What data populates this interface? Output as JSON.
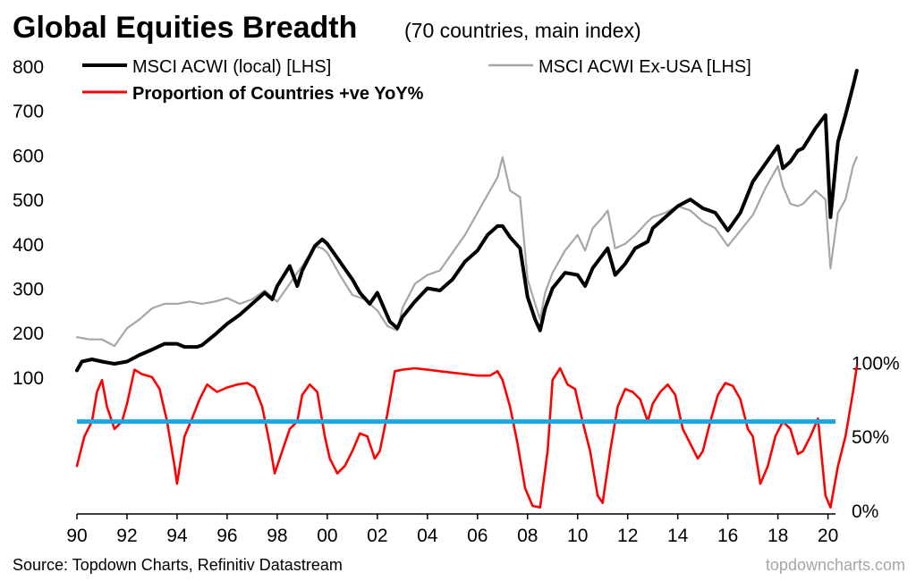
{
  "chart_data": {
    "type": "line",
    "title": "Global Equities Breadth",
    "subtitle": "(70 countries, main index)",
    "source": "Source: Topdown Charts, Refinitiv Datastream",
    "watermark": "topdowncharts.com",
    "x_axis": {
      "tick_labels": [
        "90",
        "92",
        "94",
        "96",
        "98",
        "00",
        "02",
        "04",
        "06",
        "08",
        "10",
        "12",
        "14",
        "16",
        "18",
        "20"
      ],
      "range": [
        1990,
        2020.3
      ]
    },
    "y_left": {
      "tick_labels": [
        "800",
        "700",
        "600",
        "500",
        "400",
        "300",
        "200",
        "100"
      ],
      "ticks": [
        800,
        700,
        600,
        500,
        400,
        300,
        200,
        100
      ],
      "range": [
        -200,
        800
      ]
    },
    "y_right": {
      "tick_labels": [
        "100%",
        "50%",
        "0%"
      ],
      "ticks": [
        100,
        50,
        0
      ],
      "range": [
        0,
        300
      ]
    },
    "legend": {
      "items": [
        {
          "label": "MSCI ACWI (local) [LHS]",
          "color": "#000000"
        },
        {
          "label": "MSCI ACWI Ex-USA [LHS]",
          "color": "#a6a6a6"
        },
        {
          "label": "Proportion of Countries +ve YoY%",
          "color": "#ff0000",
          "bold": true
        }
      ],
      "placement": "top-left"
    },
    "reference_line": {
      "value": 60,
      "axis": "right",
      "color": "#1aa7e0"
    },
    "series": [
      {
        "name": "MSCI ACWI (local) [LHS]",
        "axis": "left",
        "color": "#000000",
        "points": [
          [
            1990.0,
            115
          ],
          [
            1990.2,
            135
          ],
          [
            1990.6,
            140
          ],
          [
            1991.0,
            135
          ],
          [
            1991.5,
            130
          ],
          [
            1992.0,
            135
          ],
          [
            1992.5,
            150
          ],
          [
            1993.0,
            162
          ],
          [
            1993.5,
            175
          ],
          [
            1994.0,
            175
          ],
          [
            1994.3,
            168
          ],
          [
            1994.8,
            168
          ],
          [
            1995.0,
            172
          ],
          [
            1995.5,
            195
          ],
          [
            1996.0,
            220
          ],
          [
            1996.5,
            240
          ],
          [
            1997.0,
            265
          ],
          [
            1997.5,
            290
          ],
          [
            1997.8,
            275
          ],
          [
            1998.0,
            305
          ],
          [
            1998.5,
            350
          ],
          [
            1998.8,
            305
          ],
          [
            1999.0,
            340
          ],
          [
            1999.5,
            395
          ],
          [
            1999.8,
            410
          ],
          [
            2000.0,
            400
          ],
          [
            2000.5,
            360
          ],
          [
            2001.0,
            320
          ],
          [
            2001.3,
            290
          ],
          [
            2001.7,
            265
          ],
          [
            2002.0,
            290
          ],
          [
            2002.5,
            225
          ],
          [
            2002.8,
            210
          ],
          [
            2003.0,
            235
          ],
          [
            2003.5,
            270
          ],
          [
            2004.0,
            300
          ],
          [
            2004.5,
            295
          ],
          [
            2005.0,
            320
          ],
          [
            2005.5,
            360
          ],
          [
            2006.0,
            385
          ],
          [
            2006.4,
            420
          ],
          [
            2006.8,
            440
          ],
          [
            2007.0,
            440
          ],
          [
            2007.3,
            415
          ],
          [
            2007.7,
            390
          ],
          [
            2008.0,
            280
          ],
          [
            2008.3,
            230
          ],
          [
            2008.5,
            205
          ],
          [
            2008.7,
            255
          ],
          [
            2009.0,
            300
          ],
          [
            2009.5,
            335
          ],
          [
            2010.0,
            330
          ],
          [
            2010.3,
            305
          ],
          [
            2010.6,
            345
          ],
          [
            2011.0,
            375
          ],
          [
            2011.2,
            390
          ],
          [
            2011.5,
            330
          ],
          [
            2011.9,
            355
          ],
          [
            2012.3,
            390
          ],
          [
            2012.8,
            405
          ],
          [
            2013.0,
            435
          ],
          [
            2013.5,
            460
          ],
          [
            2014.0,
            485
          ],
          [
            2014.5,
            500
          ],
          [
            2015.0,
            480
          ],
          [
            2015.5,
            470
          ],
          [
            2016.0,
            430
          ],
          [
            2016.5,
            470
          ],
          [
            2017.0,
            540
          ],
          [
            2017.5,
            580
          ],
          [
            2018.0,
            620
          ],
          [
            2018.2,
            570
          ],
          [
            2018.5,
            585
          ],
          [
            2018.8,
            610
          ],
          [
            2019.0,
            615
          ],
          [
            2019.5,
            660
          ],
          [
            2019.9,
            690
          ],
          [
            2020.1,
            460
          ],
          [
            2020.4,
            630
          ],
          [
            2020.7,
            690
          ],
          [
            2021.0,
            755
          ],
          [
            2021.15,
            790
          ]
        ]
      },
      {
        "name": "MSCI ACWI Ex-USA [LHS]",
        "axis": "left",
        "color": "#a6a6a6",
        "points": [
          [
            1990.0,
            190
          ],
          [
            1990.5,
            185
          ],
          [
            1991.0,
            185
          ],
          [
            1991.5,
            170
          ],
          [
            1992.0,
            210
          ],
          [
            1992.5,
            230
          ],
          [
            1993.0,
            255
          ],
          [
            1993.5,
            265
          ],
          [
            1994.0,
            265
          ],
          [
            1994.5,
            270
          ],
          [
            1995.0,
            265
          ],
          [
            1995.5,
            270
          ],
          [
            1996.0,
            278
          ],
          [
            1996.5,
            265
          ],
          [
            1997.0,
            275
          ],
          [
            1997.5,
            295
          ],
          [
            1998.0,
            270
          ],
          [
            1998.5,
            310
          ],
          [
            1998.8,
            335
          ],
          [
            1999.0,
            350
          ],
          [
            1999.5,
            395
          ],
          [
            1999.8,
            390
          ],
          [
            2000.0,
            380
          ],
          [
            2000.5,
            330
          ],
          [
            2001.0,
            285
          ],
          [
            2001.5,
            275
          ],
          [
            2002.0,
            250
          ],
          [
            2002.4,
            215
          ],
          [
            2002.8,
            205
          ],
          [
            2003.0,
            255
          ],
          [
            2003.5,
            310
          ],
          [
            2004.0,
            330
          ],
          [
            2004.5,
            340
          ],
          [
            2005.0,
            380
          ],
          [
            2005.5,
            420
          ],
          [
            2006.0,
            470
          ],
          [
            2006.4,
            510
          ],
          [
            2006.8,
            550
          ],
          [
            2007.0,
            595
          ],
          [
            2007.3,
            520
          ],
          [
            2007.7,
            505
          ],
          [
            2008.0,
            320
          ],
          [
            2008.3,
            265
          ],
          [
            2008.5,
            230
          ],
          [
            2008.7,
            290
          ],
          [
            2009.0,
            335
          ],
          [
            2009.5,
            385
          ],
          [
            2010.0,
            420
          ],
          [
            2010.3,
            385
          ],
          [
            2010.6,
            435
          ],
          [
            2011.0,
            460
          ],
          [
            2011.2,
            475
          ],
          [
            2011.5,
            390
          ],
          [
            2011.9,
            400
          ],
          [
            2012.3,
            420
          ],
          [
            2012.8,
            450
          ],
          [
            2013.0,
            460
          ],
          [
            2013.5,
            470
          ],
          [
            2014.0,
            485
          ],
          [
            2014.5,
            475
          ],
          [
            2015.0,
            450
          ],
          [
            2015.5,
            435
          ],
          [
            2016.0,
            395
          ],
          [
            2016.5,
            430
          ],
          [
            2017.0,
            465
          ],
          [
            2017.5,
            525
          ],
          [
            2018.0,
            575
          ],
          [
            2018.2,
            530
          ],
          [
            2018.5,
            490
          ],
          [
            2018.8,
            485
          ],
          [
            2019.0,
            490
          ],
          [
            2019.5,
            520
          ],
          [
            2019.9,
            500
          ],
          [
            2020.1,
            345
          ],
          [
            2020.4,
            470
          ],
          [
            2020.7,
            500
          ],
          [
            2021.0,
            575
          ],
          [
            2021.15,
            595
          ]
        ]
      },
      {
        "name": "Proportion of Countries +ve YoY%",
        "axis": "right",
        "color": "#ff0000",
        "points": [
          [
            1990.0,
            30
          ],
          [
            1990.3,
            50
          ],
          [
            1990.6,
            60
          ],
          [
            1990.8,
            80
          ],
          [
            1991.0,
            88
          ],
          [
            1991.2,
            70
          ],
          [
            1991.5,
            55
          ],
          [
            1991.8,
            60
          ],
          [
            1992.0,
            72
          ],
          [
            1992.3,
            95
          ],
          [
            1992.6,
            92
          ],
          [
            1993.0,
            90
          ],
          [
            1993.3,
            82
          ],
          [
            1993.6,
            60
          ],
          [
            1993.9,
            30
          ],
          [
            1994.0,
            18
          ],
          [
            1994.3,
            50
          ],
          [
            1994.6,
            62
          ],
          [
            1994.9,
            75
          ],
          [
            1995.2,
            85
          ],
          [
            1995.6,
            80
          ],
          [
            1996.0,
            83
          ],
          [
            1996.4,
            85
          ],
          [
            1996.8,
            86
          ],
          [
            1997.1,
            83
          ],
          [
            1997.4,
            70
          ],
          [
            1997.7,
            45
          ],
          [
            1997.9,
            25
          ],
          [
            1998.2,
            40
          ],
          [
            1998.5,
            55
          ],
          [
            1998.8,
            60
          ],
          [
            1999.0,
            78
          ],
          [
            1999.3,
            85
          ],
          [
            1999.6,
            80
          ],
          [
            1999.9,
            50
          ],
          [
            2000.1,
            35
          ],
          [
            2000.4,
            25
          ],
          [
            2000.7,
            30
          ],
          [
            2001.0,
            40
          ],
          [
            2001.3,
            52
          ],
          [
            2001.6,
            50
          ],
          [
            2001.9,
            35
          ],
          [
            2002.1,
            40
          ],
          [
            2002.4,
            65
          ],
          [
            2002.7,
            94
          ],
          [
            2003.0,
            95
          ],
          [
            2003.5,
            96
          ],
          [
            2004.0,
            95
          ],
          [
            2004.5,
            94
          ],
          [
            2005.0,
            93
          ],
          [
            2005.5,
            92
          ],
          [
            2006.0,
            91
          ],
          [
            2006.5,
            91
          ],
          [
            2006.8,
            94
          ],
          [
            2007.0,
            88
          ],
          [
            2007.3,
            70
          ],
          [
            2007.6,
            45
          ],
          [
            2007.9,
            15
          ],
          [
            2008.2,
            3
          ],
          [
            2008.5,
            2
          ],
          [
            2008.8,
            40
          ],
          [
            2009.0,
            88
          ],
          [
            2009.3,
            96
          ],
          [
            2009.6,
            85
          ],
          [
            2009.9,
            82
          ],
          [
            2010.2,
            60
          ],
          [
            2010.5,
            40
          ],
          [
            2010.8,
            10
          ],
          [
            2011.0,
            5
          ],
          [
            2011.3,
            40
          ],
          [
            2011.6,
            70
          ],
          [
            2011.9,
            82
          ],
          [
            2012.2,
            80
          ],
          [
            2012.5,
            75
          ],
          [
            2012.8,
            60
          ],
          [
            2013.0,
            72
          ],
          [
            2013.3,
            80
          ],
          [
            2013.6,
            85
          ],
          [
            2013.9,
            78
          ],
          [
            2014.2,
            55
          ],
          [
            2014.5,
            45
          ],
          [
            2014.8,
            35
          ],
          [
            2015.0,
            40
          ],
          [
            2015.3,
            60
          ],
          [
            2015.6,
            78
          ],
          [
            2015.9,
            86
          ],
          [
            2016.2,
            84
          ],
          [
            2016.5,
            75
          ],
          [
            2016.8,
            55
          ],
          [
            2017.0,
            50
          ],
          [
            2017.3,
            18
          ],
          [
            2017.6,
            30
          ],
          [
            2017.9,
            50
          ],
          [
            2018.2,
            60
          ],
          [
            2018.5,
            55
          ],
          [
            2018.8,
            38
          ],
          [
            2019.0,
            40
          ],
          [
            2019.3,
            50
          ],
          [
            2019.6,
            62
          ],
          [
            2019.9,
            10
          ],
          [
            2020.1,
            2
          ],
          [
            2020.4,
            30
          ],
          [
            2020.7,
            50
          ],
          [
            2021.0,
            80
          ],
          [
            2021.15,
            97
          ]
        ]
      }
    ]
  }
}
